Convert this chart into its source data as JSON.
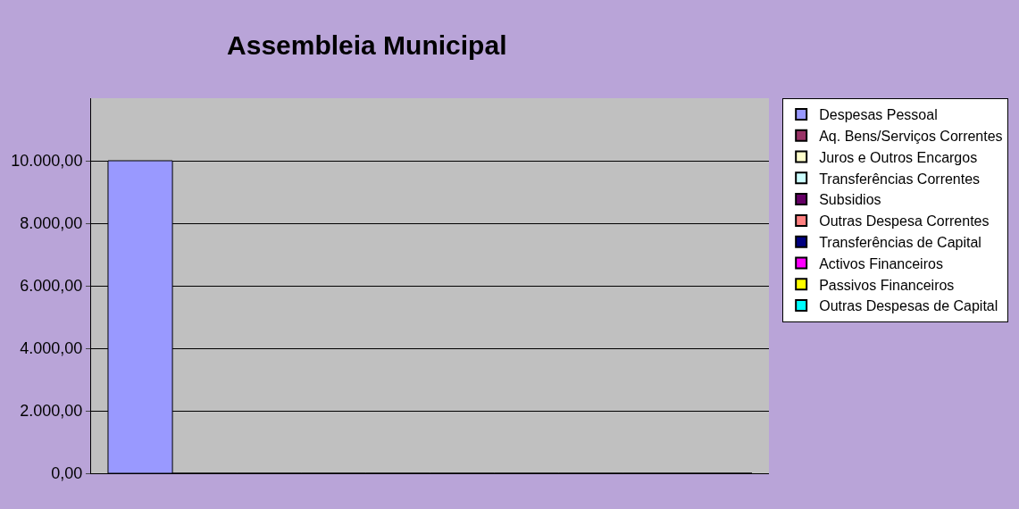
{
  "chart_data": {
    "type": "bar",
    "title": "Assembleia Municipal",
    "categories": [
      null
    ],
    "series": [
      {
        "name": "Despesas Pessoal",
        "color": "#9999ff",
        "values": [
          10000
        ]
      },
      {
        "name": "Aq. Bens/Serviços Correntes",
        "color": "#993366",
        "values": [
          0
        ]
      },
      {
        "name": "Juros e Outros Encargos",
        "color": "#ffffcc",
        "values": [
          0
        ]
      },
      {
        "name": "Transferências Correntes",
        "color": "#ccffff",
        "values": [
          0
        ]
      },
      {
        "name": "Subsidios",
        "color": "#660066",
        "values": [
          0
        ]
      },
      {
        "name": "Outras Despesa Correntes",
        "color": "#ff8080",
        "values": [
          0
        ]
      },
      {
        "name": "Transferências de Capital",
        "color": "#000080",
        "values": [
          0
        ]
      },
      {
        "name": "Activos Financeiros",
        "color": "#ff00ff",
        "values": [
          0
        ]
      },
      {
        "name": "Passivos Financeiros",
        "color": "#ffff00",
        "values": [
          0
        ]
      },
      {
        "name": "Outras Despesas de Capital",
        "color": "#00ffff",
        "values": [
          0
        ]
      }
    ],
    "ylim": [
      0,
      12000
    ],
    "yticks": [
      {
        "value": 0,
        "label": "0,00"
      },
      {
        "value": 2000,
        "label": "2.000,00"
      },
      {
        "value": 4000,
        "label": "4.000,00"
      },
      {
        "value": 6000,
        "label": "6.000,00"
      },
      {
        "value": 8000,
        "label": "8.000,00"
      },
      {
        "value": 10000,
        "label": "10.000,00"
      }
    ],
    "grid": "y",
    "legend": "right",
    "tick_labels": "y"
  }
}
